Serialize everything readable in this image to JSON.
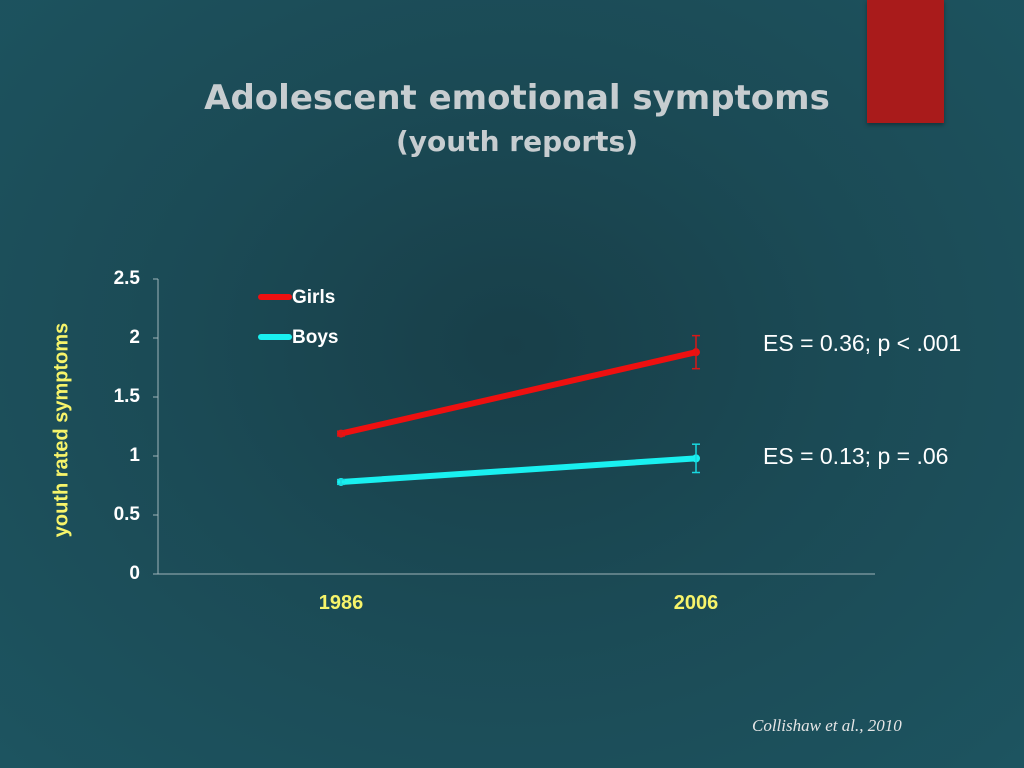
{
  "slide": {
    "title": "Adolescent emotional symptoms",
    "subtitle": "(youth reports)",
    "citation": "Collishaw et al., 2010",
    "colors": {
      "accent": "#a91b1b",
      "girls": "#ee1010",
      "boys": "#19f0f0",
      "axis_label": "#f7f46a"
    }
  },
  "chart_data": {
    "type": "line",
    "categories": [
      "1986",
      "2006"
    ],
    "ylabel": "youth rated symptoms",
    "xlabel": "",
    "ylim": [
      0,
      2.5
    ],
    "yticks": [
      "0",
      "0.5",
      "1",
      "1.5",
      "2",
      "2.5"
    ],
    "legend_position": "top-left",
    "series": [
      {
        "name": "Girls",
        "values": [
          1.19,
          1.88
        ],
        "errors": [
          0.02,
          0.14
        ],
        "color": "#ee1010"
      },
      {
        "name": "Boys",
        "values": [
          0.78,
          0.98
        ],
        "errors": [
          0.02,
          0.12
        ],
        "color": "#19f0f0"
      }
    ],
    "annotations": [
      {
        "text": "ES = 0.36; p < .001",
        "series": "Girls"
      },
      {
        "text": "ES = 0.13; p = .06",
        "series": "Boys"
      }
    ]
  }
}
